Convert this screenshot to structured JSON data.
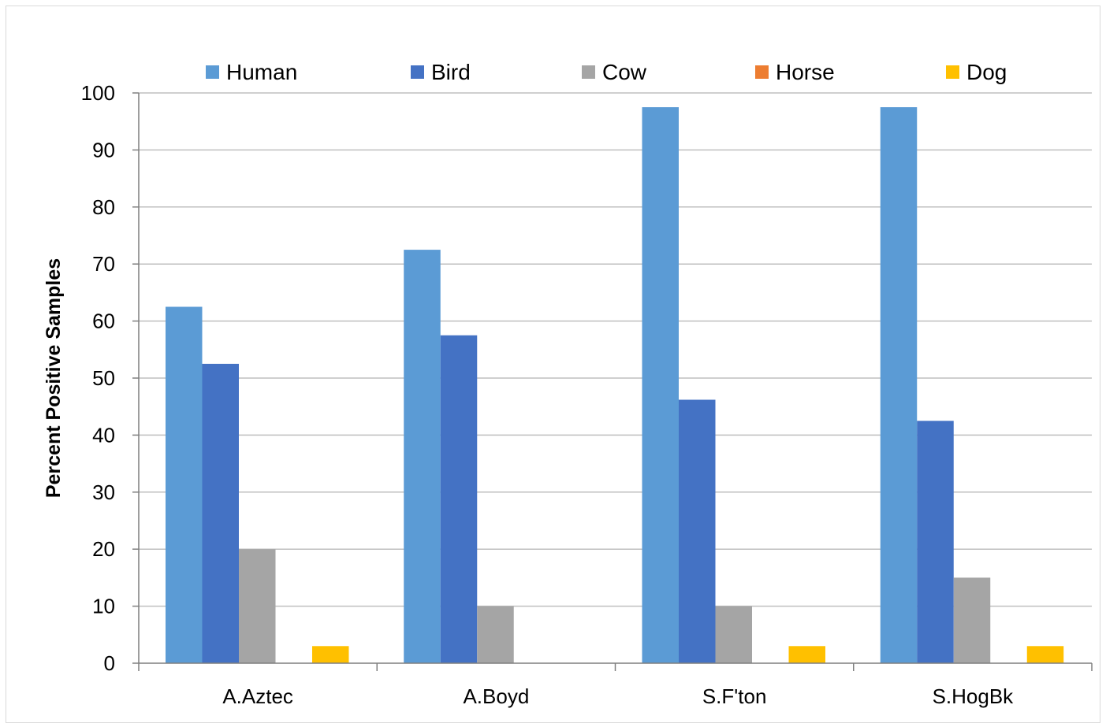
{
  "chart_data": {
    "type": "bar",
    "title": "",
    "xlabel": "",
    "ylabel": "Percent Positive Samples",
    "ylim": [
      0,
      100
    ],
    "yticks": [
      0,
      10,
      20,
      30,
      40,
      50,
      60,
      70,
      80,
      90,
      100
    ],
    "grid": true,
    "legend_position": "top",
    "categories": [
      "A.Aztec",
      "A.Boyd",
      "S.F'ton",
      "S.HogBk"
    ],
    "series": [
      {
        "name": "Human",
        "color": "#5B9BD5",
        "values": [
          62.5,
          72.5,
          97.5,
          97.5
        ]
      },
      {
        "name": "Bird",
        "color": "#4472C4",
        "values": [
          52.5,
          57.5,
          46.2,
          42.5
        ]
      },
      {
        "name": "Cow",
        "color": "#A5A5A5",
        "values": [
          20,
          10,
          10,
          15
        ]
      },
      {
        "name": "Horse",
        "color": "#ED7D31",
        "values": [
          0,
          0,
          0,
          0
        ]
      },
      {
        "name": "Dog",
        "color": "#FFC000",
        "values": [
          3,
          0,
          3,
          3
        ]
      }
    ]
  }
}
